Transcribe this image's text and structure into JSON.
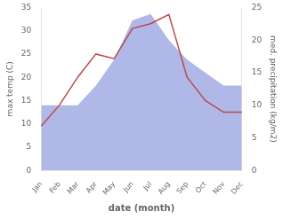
{
  "chart_data": {
    "type": "line",
    "categories": [
      "Jan",
      "Feb",
      "Mar",
      "Apr",
      "May",
      "Jun",
      "Jul",
      "Aug",
      "Sep",
      "Oct",
      "Nov",
      "Dec"
    ],
    "series": [
      {
        "type": "area",
        "axis": "y2",
        "color": "#b0b8e8",
        "values": [
          10.0,
          10.0,
          10.0,
          13.0,
          17.0,
          23.0,
          24.0,
          20.0,
          17.0,
          15.0,
          13.0,
          13.0
        ]
      },
      {
        "type": "line",
        "color": "#b94a4a",
        "values": [
          9.5,
          14.0,
          20.0,
          25.0,
          24.0,
          30.5,
          31.5,
          33.5,
          20.0,
          15.0,
          12.5,
          12.5
        ]
      }
    ],
    "xlabel": "date (month)",
    "ylabel": "max temp (C)",
    "y2label": "med. precipitation (kg/m2)",
    "ylim": [
      0,
      35
    ],
    "yticks": [
      0,
      5,
      10,
      15,
      20,
      25,
      30,
      35
    ],
    "y2lim": [
      0,
      25
    ],
    "y2ticks": [
      0,
      5,
      10,
      15,
      20,
      25
    ],
    "grid": false
  }
}
